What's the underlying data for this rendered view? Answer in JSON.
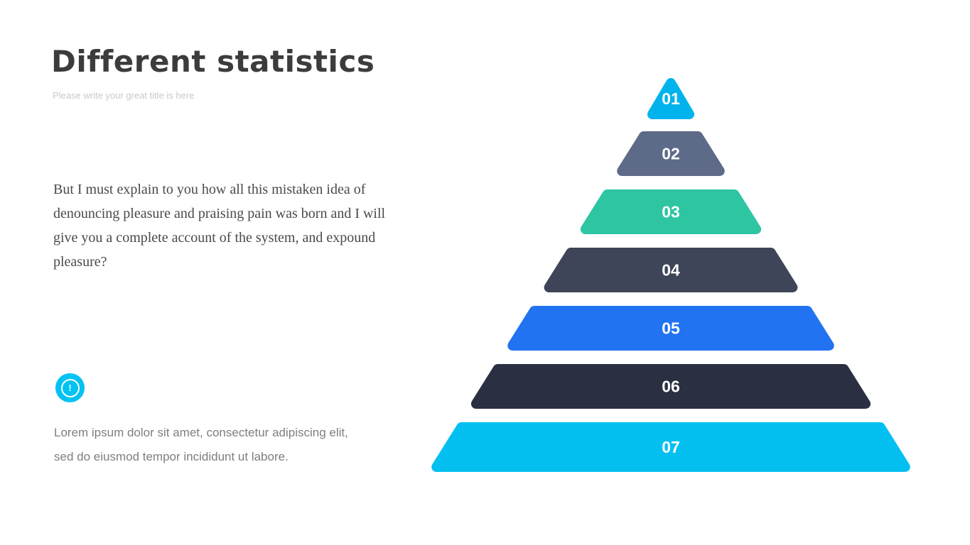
{
  "slide": {
    "title": "Different statistics",
    "subtitle": "Please write your great title is here",
    "body": "But I must explain to you how all this mistaken idea of denouncing pleasure and praising pain was born and I will give you a complete account of the system, and expound pleasure?",
    "note": {
      "icon": "exclamation-circle-icon",
      "icon_glyph": "!",
      "icon_color": "#00c2f3",
      "text": "Lorem ipsum dolor sit amet, consectetur adipiscing elit, sed do eiusmod tempor incididunt ut labore."
    }
  },
  "pyramid": {
    "type": "pyramid",
    "label_color": "#ffffff",
    "levels": [
      {
        "label": "01",
        "color": "#00b3ed"
      },
      {
        "label": "02",
        "color": "#5d6a88"
      },
      {
        "label": "03",
        "color": "#2ec5a2"
      },
      {
        "label": "04",
        "color": "#3e4559"
      },
      {
        "label": "05",
        "color": "#2173f1"
      },
      {
        "label": "06",
        "color": "#2a3041"
      },
      {
        "label": "07",
        "color": "#04c0f1"
      }
    ]
  }
}
